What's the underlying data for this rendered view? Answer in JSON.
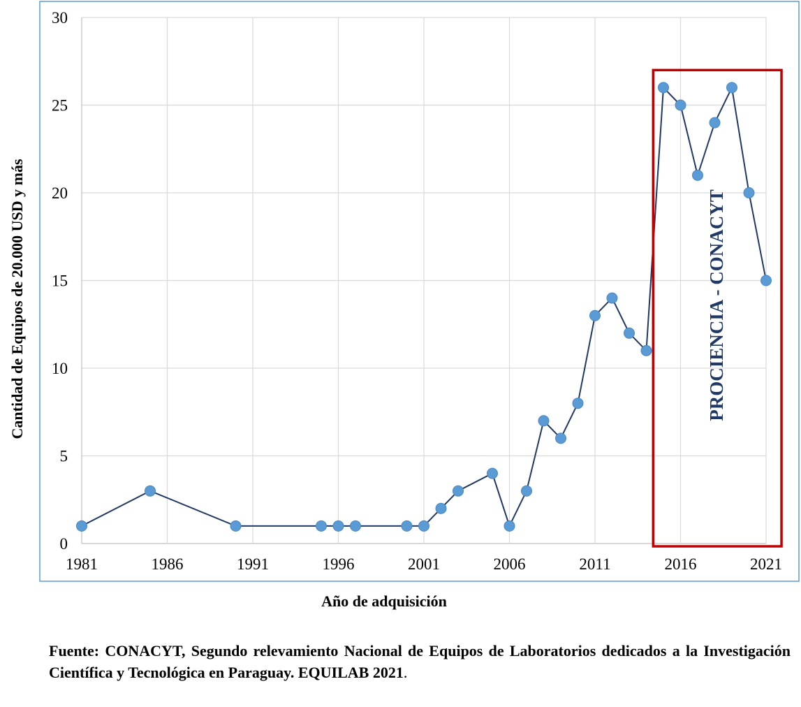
{
  "chart_data": {
    "type": "line",
    "xlabel": "Año de adquisición",
    "ylabel": "Cantidad de Equipos de 20.000 USD y más",
    "xlim": [
      1981,
      2021
    ],
    "ylim": [
      0,
      30
    ],
    "x_ticks": [
      "1981",
      "1986",
      "1991",
      "1996",
      "2001",
      "2006",
      "2011",
      "2016",
      "2021"
    ],
    "y_ticks": [
      "0",
      "5",
      "10",
      "15",
      "20",
      "25",
      "30"
    ],
    "grid": true,
    "series": [
      {
        "x": [
          1981,
          1985,
          1990,
          1995,
          1996,
          1997,
          2000,
          2001,
          2002,
          2003,
          2005,
          2006,
          2007,
          2008,
          2009,
          2010,
          2011,
          2012,
          2013,
          2014,
          2015,
          2016,
          2017,
          2018,
          2019,
          2020,
          2021
        ],
        "y": [
          1,
          3,
          1,
          1,
          1,
          1,
          1,
          1,
          2,
          3,
          4,
          1,
          3,
          7,
          6,
          8,
          13,
          14,
          12,
          11,
          26,
          25,
          21,
          24,
          26,
          20,
          15
        ]
      }
    ],
    "annotation": {
      "text": "PROCIENCIA - CONACYT",
      "x_range": [
        2014.4,
        2021.9
      ],
      "y_range": [
        0,
        27
      ],
      "color": "#1f3864",
      "box_color": "#c00000"
    },
    "colors": {
      "line": "#1f3864",
      "marker": "#5b9bd5",
      "grid": "#d9d9d9",
      "frame": "#5b9bd5"
    }
  },
  "source": {
    "label": "Fuente:",
    "text": "CONACYT, Segundo relevamiento Nacional de Equipos de Laboratorios dedicados a la Investigación Científica y Tecnológica en Paraguay. EQUILAB 2021",
    "end": "."
  }
}
